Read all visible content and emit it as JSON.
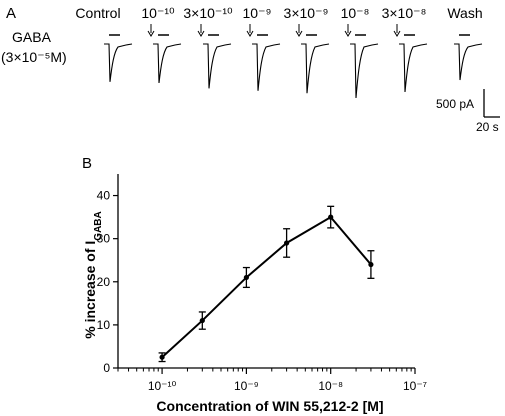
{
  "panel_a": {
    "label": "A",
    "row_label": "GABA",
    "row_conc": "(3×10⁻⁵M)",
    "conditions": [
      {
        "text": "Control",
        "arrow": false,
        "depth": 0.63
      },
      {
        "text": "10⁻¹⁰",
        "arrow": true,
        "depth": 0.65
      },
      {
        "text": "3×10⁻¹⁰",
        "arrow": true,
        "depth": 0.74
      },
      {
        "text": "10⁻⁹",
        "arrow": true,
        "depth": 0.78
      },
      {
        "text": "3×10⁻⁹",
        "arrow": true,
        "depth": 0.82
      },
      {
        "text": "10⁻⁸",
        "arrow": true,
        "depth": 0.9
      },
      {
        "text": "3×10⁻⁸",
        "arrow": true,
        "depth": 0.8
      },
      {
        "text": "Wash",
        "arrow": false,
        "depth": 0.6
      }
    ],
    "scale_current": "500 pA",
    "scale_time": "20 s"
  },
  "panel_b": {
    "label": "B"
  },
  "chart_data": {
    "type": "line",
    "title": "",
    "xlabel": "Concentration of WIN 55,212-2 [M]",
    "ylabel_main": "% increase of I",
    "ylabel_sub": "GABA",
    "x_scale": "log",
    "x": [
      1e-10,
      3e-10,
      1e-09,
      3e-09,
      1e-08,
      3e-08
    ],
    "y": [
      2.5,
      11,
      21,
      29,
      35,
      24
    ],
    "y_err": [
      1,
      2,
      2.3,
      3.3,
      2.5,
      3.2
    ],
    "xlim": [
      3e-11,
      1e-07
    ],
    "ylim": [
      0,
      45
    ],
    "y_ticks": [
      0,
      10,
      20,
      30,
      40
    ],
    "y_tick_labels": [
      "0",
      "10",
      "20",
      "30",
      "40"
    ],
    "x_ticks": [
      -10,
      -9,
      -8,
      -7
    ],
    "x_tick_labels": [
      "10⁻¹⁰",
      "10⁻⁹",
      "10⁻⁸",
      "10⁻⁷"
    ],
    "grid": false,
    "legend": "none"
  }
}
